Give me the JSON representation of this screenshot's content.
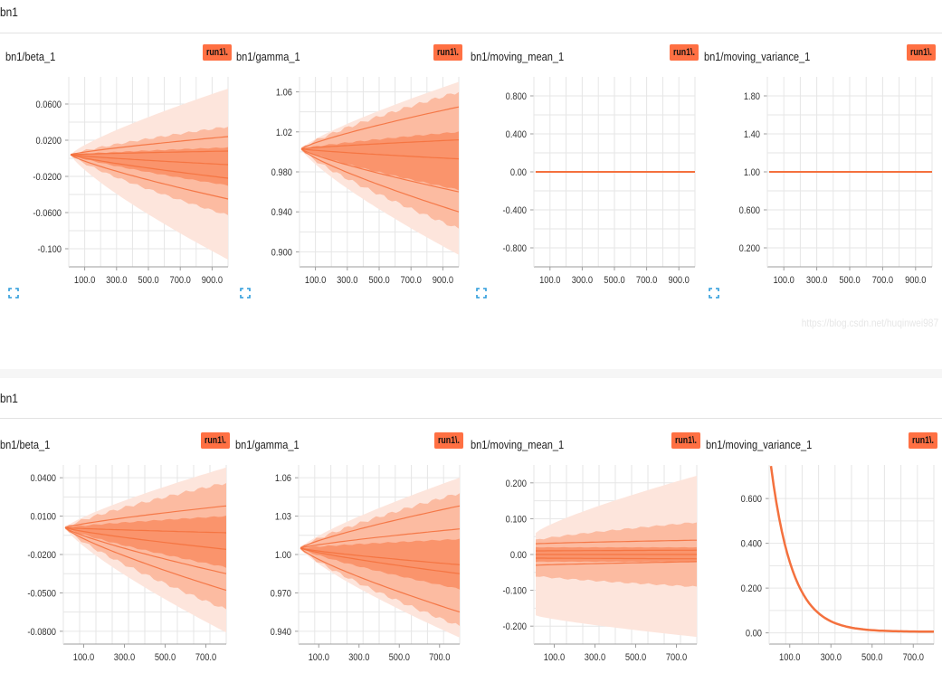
{
  "sections": [
    {
      "title": "bn1"
    },
    {
      "title": "bn1"
    }
  ],
  "run_label": "run1\\.",
  "watermark": "https://blog.csdn.net/huqinwei987",
  "colors": {
    "line": "#f4713e",
    "band_outer": "#fde5dc",
    "band_mid": "#fcb69a",
    "band_inner": "#f9875b",
    "grid": "#e6e6e6",
    "axis": "#9e9e9e",
    "badge": "#ff7043",
    "expand_icon": "#2d9cdb"
  },
  "chart_data": [
    {
      "title": "bn1/beta_1",
      "type": "distribution",
      "x_ticks": [
        "100.0",
        "300.0",
        "500.0",
        "700.0",
        "900.0"
      ],
      "xlim": [
        0,
        1000
      ],
      "y_ticks": [
        "0.0600",
        "0.0200",
        "-0.0200",
        "-0.0600",
        "-0.100"
      ],
      "y_tick_values": [
        0.06,
        0.02,
        -0.02,
        -0.06,
        -0.1
      ],
      "ylim": [
        -0.12,
        0.09
      ],
      "x": [
        0,
        1000
      ],
      "bands": [
        [
          0.004,
          0.004,
          0.077,
          -0.112
        ],
        [
          0.004,
          0.004,
          0.035,
          -0.063
        ],
        [
          0.004,
          0.004,
          0.012,
          -0.03
        ]
      ],
      "lines": [
        [
          0.004,
          0.024
        ],
        [
          0.004,
          0.008
        ],
        [
          0.004,
          -0.007
        ],
        [
          0.004,
          -0.022
        ],
        [
          0.004,
          -0.045
        ]
      ]
    },
    {
      "title": "bn1/gamma_1",
      "type": "distribution",
      "x_ticks": [
        "100.0",
        "300.0",
        "500.0",
        "700.0",
        "900.0"
      ],
      "xlim": [
        0,
        1000
      ],
      "y_ticks": [
        "1.06",
        "1.02",
        "0.980",
        "0.940",
        "0.900"
      ],
      "y_tick_values": [
        1.06,
        1.02,
        0.98,
        0.94,
        0.9
      ],
      "ylim": [
        0.885,
        1.075
      ],
      "x": [
        0,
        1000
      ],
      "bands": [
        [
          1.003,
          1.003,
          1.07,
          0.897
        ],
        [
          1.003,
          1.003,
          1.06,
          0.923
        ],
        [
          1.003,
          1.003,
          1.02,
          0.962
        ]
      ],
      "lines": [
        [
          1.003,
          1.045
        ],
        [
          1.003,
          1.012
        ],
        [
          1.003,
          0.993
        ],
        [
          1.003,
          0.96
        ],
        [
          1.003,
          0.94
        ]
      ]
    },
    {
      "title": "bn1/moving_mean_1",
      "type": "line",
      "x_ticks": [
        "100.0",
        "300.0",
        "500.0",
        "700.0",
        "900.0"
      ],
      "xlim": [
        0,
        1000
      ],
      "y_ticks": [
        "0.800",
        "0.400",
        "0.00",
        "-0.400",
        "-0.800"
      ],
      "y_tick_values": [
        0.8,
        0.4,
        0,
        -0.4,
        -0.8
      ],
      "ylim": [
        -1.0,
        1.0
      ],
      "x": [
        0,
        1000
      ],
      "y": [
        0,
        0
      ]
    },
    {
      "title": "bn1/moving_variance_1",
      "type": "line",
      "x_ticks": [
        "100.0",
        "300.0",
        "500.0",
        "700.0",
        "900.0"
      ],
      "xlim": [
        0,
        1000
      ],
      "y_ticks": [
        "1.80",
        "1.40",
        "1.00",
        "0.600",
        "0.200"
      ],
      "y_tick_values": [
        1.8,
        1.4,
        1.0,
        0.6,
        0.2
      ],
      "ylim": [
        0.0,
        2.0
      ],
      "x": [
        0,
        1000
      ],
      "y": [
        1,
        1
      ]
    },
    {
      "title": "bn1/beta_1",
      "type": "distribution",
      "x_ticks": [
        "100.0",
        "300.0",
        "500.0",
        "700.0"
      ],
      "xlim": [
        0,
        800
      ],
      "y_ticks": [
        "0.0400",
        "0.0100",
        "-0.0200",
        "-0.0500",
        "-0.0800"
      ],
      "y_tick_values": [
        0.04,
        0.01,
        -0.02,
        -0.05,
        -0.08
      ],
      "ylim": [
        -0.09,
        0.05
      ],
      "x": [
        0,
        800
      ],
      "bands": [
        [
          0.001,
          0.001,
          0.048,
          -0.081
        ],
        [
          0.001,
          0.001,
          0.036,
          -0.063
        ],
        [
          0.001,
          0.001,
          0.01,
          -0.03
        ]
      ],
      "lines": [
        [
          0.001,
          0.018
        ],
        [
          0.001,
          -0.003
        ],
        [
          0.001,
          -0.016
        ],
        [
          0.001,
          -0.035
        ],
        [
          0.001,
          -0.048
        ]
      ]
    },
    {
      "title": "bn1/gamma_1",
      "type": "distribution",
      "x_ticks": [
        "100.0",
        "300.0",
        "500.0",
        "700.0"
      ],
      "xlim": [
        0,
        800
      ],
      "y_ticks": [
        "1.06",
        "1.03",
        "1.00",
        "0.970",
        "0.940"
      ],
      "y_tick_values": [
        1.06,
        1.03,
        1.0,
        0.97,
        0.94
      ],
      "ylim": [
        0.93,
        1.07
      ],
      "x": [
        0,
        800
      ],
      "bands": [
        [
          1.005,
          1.005,
          1.06,
          0.935
        ],
        [
          1.005,
          1.005,
          1.048,
          0.944
        ],
        [
          1.005,
          1.005,
          1.012,
          0.973
        ]
      ],
      "lines": [
        [
          1.005,
          1.038
        ],
        [
          1.005,
          1.02
        ],
        [
          1.005,
          0.992
        ],
        [
          1.005,
          0.985
        ],
        [
          1.005,
          0.955
        ]
      ]
    },
    {
      "title": "bn1/moving_mean_1",
      "type": "distribution",
      "x_ticks": [
        "100.0",
        "300.0",
        "500.0",
        "700.0"
      ],
      "xlim": [
        0,
        800
      ],
      "y_ticks": [
        "0.200",
        "0.100",
        "0.00",
        "-0.100",
        "-0.200"
      ],
      "y_tick_values": [
        0.2,
        0.1,
        0,
        -0.1,
        -0.2
      ],
      "ylim": [
        -0.25,
        0.25
      ],
      "x": [
        0,
        800
      ],
      "bands": [
        [
          0.06,
          -0.17,
          0.22,
          -0.23
        ],
        [
          0.04,
          -0.06,
          0.09,
          -0.09
        ],
        [
          0.02,
          -0.02,
          0.02,
          -0.02
        ]
      ],
      "lines": [
        [
          0.03,
          0.04
        ],
        [
          0.01,
          0.012
        ],
        [
          0.0,
          0.0
        ],
        [
          -0.01,
          -0.012
        ],
        [
          -0.03,
          -0.02
        ]
      ]
    },
    {
      "title": "bn1/moving_variance_1",
      "type": "decay",
      "x_ticks": [
        "100.0",
        "300.0",
        "500.0",
        "700.0"
      ],
      "xlim": [
        0,
        800
      ],
      "y_ticks": [
        "0.600",
        "0.400",
        "0.200",
        "0.00"
      ],
      "y_tick_values": [
        0.6,
        0.4,
        0.2,
        0
      ],
      "ylim": [
        -0.05,
        0.75
      ],
      "x": [
        0,
        800
      ],
      "y": [
        0.745,
        0.005
      ]
    }
  ]
}
